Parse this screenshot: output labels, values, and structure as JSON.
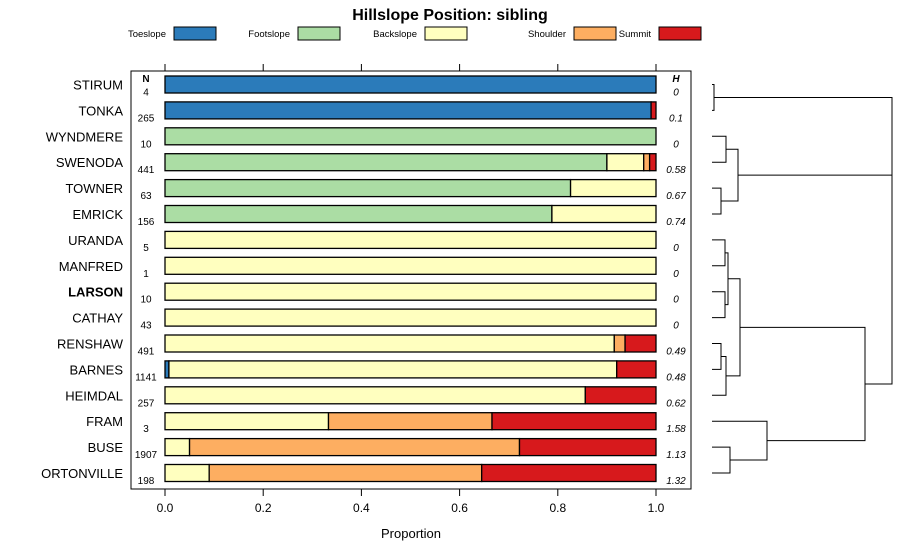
{
  "chart_data": {
    "type": "bar",
    "orientation": "horizontal",
    "stacked": true,
    "title": "Hillslope Position: sibling",
    "xlabel": "Proportion",
    "xlim": [
      0,
      1
    ],
    "xticks": [
      "0.0",
      "0.2",
      "0.4",
      "0.6",
      "0.8",
      "1.0"
    ],
    "n_header": "N",
    "h_header": "H",
    "legend_position": "top",
    "highlighted_category": "LARSON",
    "categories": [
      "STIRUM",
      "TONKA",
      "WYNDMERE",
      "SWENODA",
      "TOWNER",
      "EMRICK",
      "URANDA",
      "MANFRED",
      "LARSON",
      "CATHAY",
      "RENSHAW",
      "BARNES",
      "HEIMDAL",
      "FRAM",
      "BUSE",
      "ORTONVILLE"
    ],
    "n": [
      "4",
      "265",
      "10",
      "441",
      "63",
      "156",
      "5",
      "1",
      "10",
      "43",
      "491",
      "1141",
      "257",
      "3",
      "1907",
      "198"
    ],
    "h": [
      "0",
      "0.1",
      "0",
      "0.58",
      "0.67",
      "0.74",
      "0",
      "0",
      "0",
      "0",
      "0.49",
      "0.48",
      "0.62",
      "1.58",
      "1.13",
      "1.32"
    ],
    "series": [
      {
        "name": "Toeslope",
        "color": "#2b7bba",
        "values": [
          1.0,
          0.99,
          0,
          0,
          0,
          0,
          0,
          0,
          0,
          0,
          0,
          0.008,
          0,
          0,
          0,
          0
        ]
      },
      {
        "name": "Footslope",
        "color": "#abdda4",
        "values": [
          0,
          0,
          1.0,
          0.9,
          0.826,
          0.788,
          0,
          0,
          0,
          0,
          0,
          0,
          0,
          0,
          0,
          0
        ]
      },
      {
        "name": "Backslope",
        "color": "#ffffbf",
        "values": [
          0,
          0,
          0,
          0.075,
          0.174,
          0.212,
          1.0,
          1.0,
          1.0,
          1.0,
          0.915,
          0.912,
          0.856,
          0.333,
          0.05,
          0.09
        ]
      },
      {
        "name": "Shoulder",
        "color": "#fdae61",
        "values": [
          0,
          0,
          0,
          0.012,
          0,
          0,
          0,
          0,
          0,
          0,
          0.022,
          0,
          0,
          0.333,
          0.672,
          0.555
        ]
      },
      {
        "name": "Summit",
        "color": "#d7191c",
        "values": [
          0,
          0.01,
          0,
          0.013,
          0,
          0,
          0,
          0,
          0,
          0,
          0.063,
          0.08,
          0.144,
          0.334,
          0.278,
          0.355
        ]
      }
    ]
  }
}
